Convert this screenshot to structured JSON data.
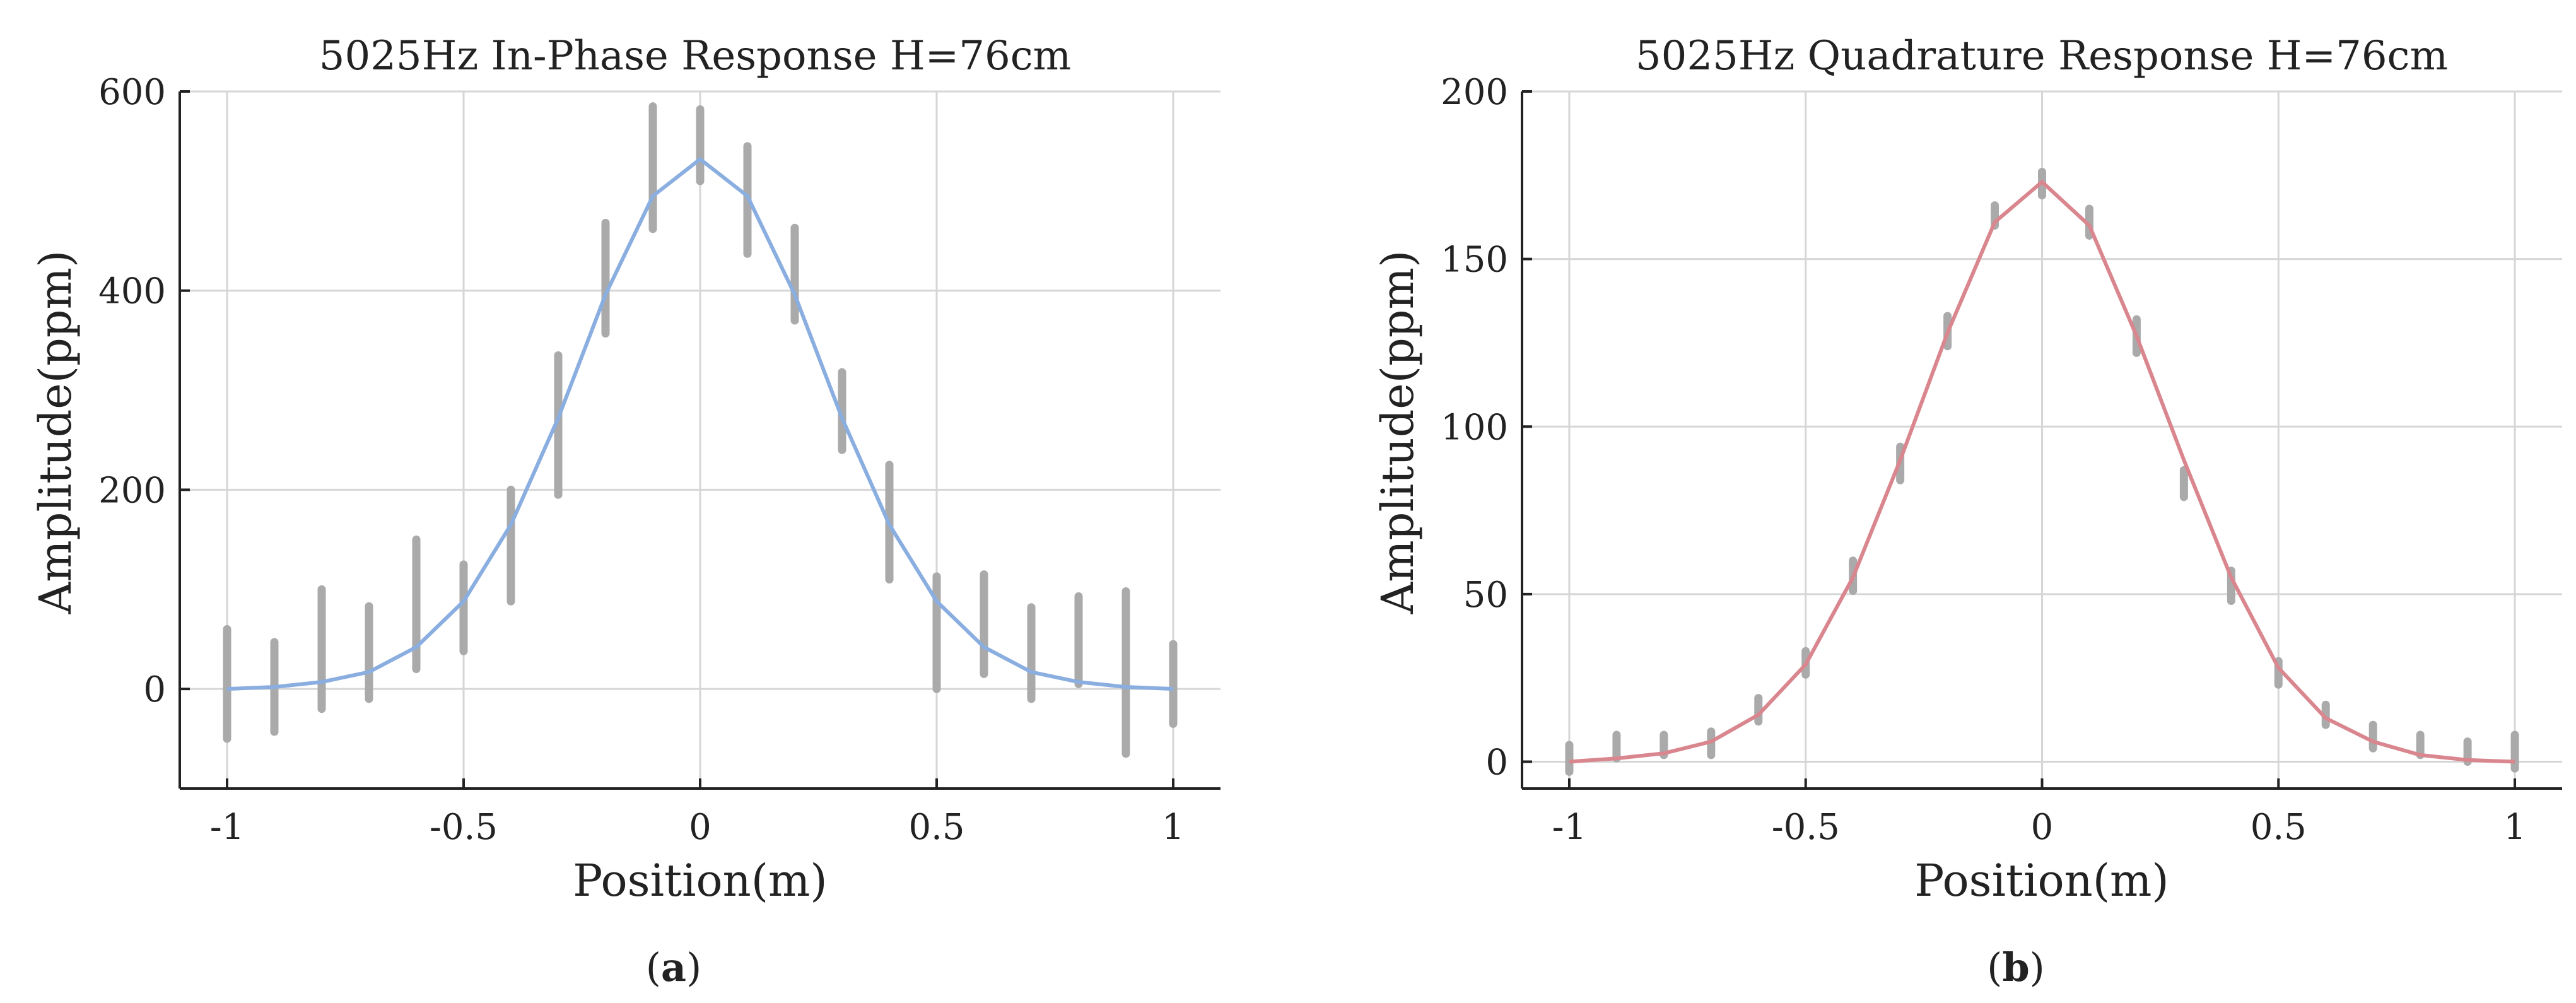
{
  "chart_data": [
    {
      "type": "line",
      "panel_tag": "a",
      "title": "5025Hz In-Phase Response H=76cm",
      "xlabel": "Position(m)",
      "ylabel": "Amplitude(ppm)",
      "xlim": [
        -1.1,
        1.1
      ],
      "ylim": [
        -100,
        600
      ],
      "xticks": [
        -1,
        -0.5,
        0,
        0.5,
        1
      ],
      "xtick_labels": [
        "-1",
        "-0.5",
        "0",
        "0.5",
        "1"
      ],
      "yticks": [
        0,
        200,
        400,
        600
      ],
      "ytick_labels": [
        "0",
        "200",
        "400",
        "600"
      ],
      "grid": true,
      "line_color": "#8aaee0",
      "errorbar_color": "#aaaaaa",
      "x": [
        -1,
        -0.9,
        -0.8,
        -0.7,
        -0.6,
        -0.5,
        -0.4,
        -0.3,
        -0.2,
        -0.1,
        0,
        0.1,
        0.2,
        0.3,
        0.4,
        0.5,
        0.6,
        0.7,
        0.8,
        0.9,
        1
      ],
      "values": [
        0,
        2,
        7,
        17,
        42,
        88,
        165,
        272,
        396,
        495,
        532,
        495,
        396,
        272,
        165,
        88,
        42,
        17,
        7,
        2,
        0
      ],
      "error_low": [
        -50,
        -43,
        -20,
        -10,
        20,
        38,
        88,
        195,
        357,
        462,
        510,
        437,
        370,
        240,
        110,
        0,
        15,
        -10,
        5,
        -65,
        -35
      ],
      "error_high": [
        60,
        47,
        100,
        83,
        150,
        125,
        200,
        335,
        468,
        585,
        582,
        545,
        463,
        318,
        225,
        113,
        115,
        82,
        93,
        98,
        45
      ]
    },
    {
      "type": "line",
      "panel_tag": "b",
      "title": "5025Hz Quadrature Response H=76cm",
      "xlabel": "Position(m)",
      "ylabel": "Amplitude(ppm)",
      "xlim": [
        -1.1,
        1.1
      ],
      "ylim": [
        -8,
        200
      ],
      "xticks": [
        -1,
        -0.5,
        0,
        0.5,
        1
      ],
      "xtick_labels": [
        "-1",
        "-0.5",
        "0",
        "0.5",
        "1"
      ],
      "yticks": [
        0,
        50,
        100,
        150,
        200
      ],
      "ytick_labels": [
        "0",
        "50",
        "100",
        "150",
        "200"
      ],
      "grid": true,
      "line_color": "#d9868e",
      "errorbar_color": "#aaaaaa",
      "x": [
        -1,
        -0.9,
        -0.8,
        -0.7,
        -0.6,
        -0.5,
        -0.4,
        -0.3,
        -0.2,
        -0.1,
        0,
        0.1,
        0.2,
        0.3,
        0.4,
        0.5,
        0.6,
        0.7,
        0.8,
        0.9,
        1
      ],
      "values": [
        0,
        1,
        2.5,
        6,
        14,
        29,
        55,
        90,
        128,
        161,
        173,
        160,
        127,
        90,
        55,
        28,
        13,
        6,
        2,
        0.5,
        0
      ],
      "error_low": [
        -3,
        1,
        2,
        2,
        12,
        26,
        51,
        84,
        124,
        160,
        169,
        157,
        122,
        79,
        48,
        23,
        11,
        4,
        2,
        0,
        -2
      ],
      "error_high": [
        5,
        8,
        8,
        9,
        19,
        33,
        60,
        94,
        133,
        166,
        176,
        165,
        132,
        87,
        57,
        30,
        17,
        11,
        8,
        6,
        8
      ]
    }
  ]
}
